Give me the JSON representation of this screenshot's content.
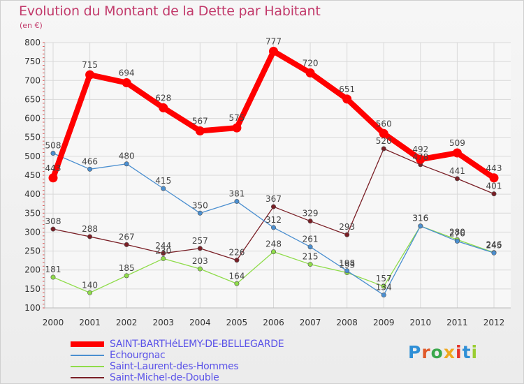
{
  "title": "Evolution du Montant de la Dette par Habitant",
  "unit": "(en €)",
  "logo": {
    "text": "Proxiti",
    "colors": [
      "#2f8fd6",
      "#e05a2a",
      "#3aa84c",
      "#f0a81e",
      "#e6332a",
      "#2f8fd6",
      "#9acd32"
    ]
  },
  "chart_data": {
    "type": "line",
    "x": [
      "2000",
      "2001",
      "2002",
      "2003",
      "2004",
      "2005",
      "2006",
      "2007",
      "2008",
      "2009",
      "2010",
      "2011",
      "2012"
    ],
    "ylim": [
      100,
      800
    ],
    "yticks": [
      "100",
      "150",
      "200",
      "250",
      "300",
      "350",
      "400",
      "450",
      "500",
      "550",
      "600",
      "650",
      "700",
      "750",
      "800"
    ],
    "grid": true,
    "legend_position": "bottom-left",
    "series": [
      {
        "name": "SAINT-BARTHéLEMY-DE-BELLEGARDE",
        "color": "#ff0000",
        "values": [
          443,
          715,
          694,
          628,
          567,
          575,
          777,
          720,
          651,
          560,
          492,
          509,
          443
        ]
      },
      {
        "name": "Echourgnac",
        "color": "#4b8fd0",
        "values": [
          508,
          466,
          480,
          415,
          350,
          381,
          312,
          261,
          198,
          134,
          316,
          276,
          245
        ]
      },
      {
        "name": "Saint-Laurent-des-Hommes",
        "color": "#8fdc4a",
        "values": [
          181,
          140,
          185,
          230,
          203,
          164,
          248,
          215,
          193,
          157,
          316,
          280,
          246
        ]
      },
      {
        "name": "Saint-Michel-de-Double",
        "color": "#7a1f26",
        "values": [
          308,
          288,
          267,
          244,
          257,
          226,
          367,
          329,
          293,
          520,
          478,
          441,
          401
        ]
      }
    ]
  }
}
